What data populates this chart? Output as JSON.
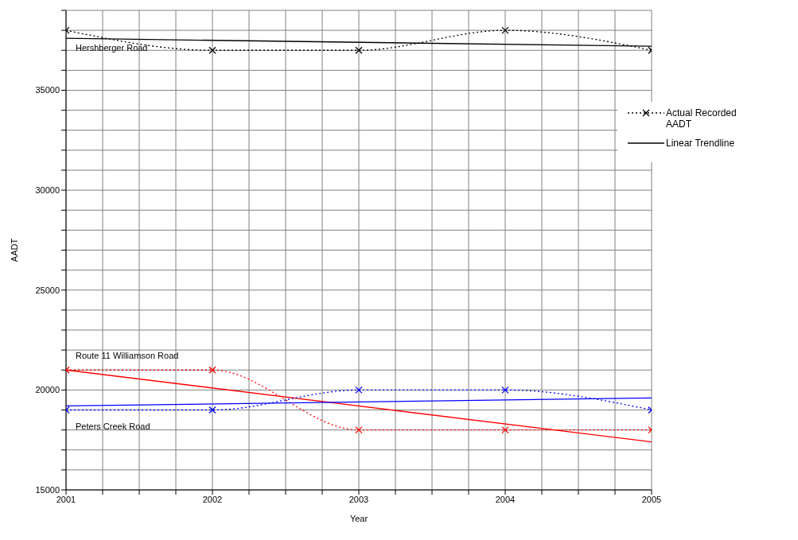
{
  "chart_data": {
    "type": "line",
    "xlabel": "Year",
    "ylabel": "AADT",
    "xlim": [
      2001,
      2005
    ],
    "xticks": [
      2001,
      {
        "value": 2001.25,
        "label": null
      },
      {
        "value": 2001.5,
        "label": null
      },
      {
        "value": 2001.75,
        "label": null
      },
      2002,
      {
        "value": 2002.25,
        "label": null
      },
      {
        "value": 2002.5,
        "label": null
      },
      {
        "value": 2002.75,
        "label": null
      },
      2003,
      {
        "value": 2003.25,
        "label": null
      },
      {
        "value": 2003.5,
        "label": null
      },
      {
        "value": 2003.75,
        "label": null
      },
      2004,
      {
        "value": 2004.25,
        "label": null
      },
      {
        "value": 2004.5,
        "label": null
      },
      {
        "value": 2004.75,
        "label": null
      },
      2005
    ],
    "ylim": [
      15000,
      39000
    ],
    "yticks": [
      15000,
      {
        "value": 16000,
        "label": null
      },
      {
        "value": 17000,
        "label": null
      },
      {
        "value": 18000,
        "label": null
      },
      {
        "value": 19000,
        "label": null
      },
      20000,
      {
        "value": 21000,
        "label": null
      },
      {
        "value": 22000,
        "label": null
      },
      {
        "value": 23000,
        "label": null
      },
      {
        "value": 24000,
        "label": null
      },
      25000,
      {
        "value": 26000,
        "label": null
      },
      {
        "value": 27000,
        "label": null
      },
      {
        "value": 28000,
        "label": null
      },
      {
        "value": 29000,
        "label": null
      },
      30000,
      {
        "value": 31000,
        "label": null
      },
      {
        "value": 32000,
        "label": null
      },
      {
        "value": 33000,
        "label": null
      },
      {
        "value": 34000,
        "label": null
      },
      35000,
      {
        "value": 36000,
        "label": null
      },
      {
        "value": 37000,
        "label": null
      },
      {
        "value": 38000,
        "label": null
      },
      {
        "value": 39000,
        "label": null
      }
    ],
    "grid": true,
    "legend": "top right",
    "series": [
      {
        "name": "Actual Recorded AADT",
        "color": "#000000",
        "x": [
          2001,
          2002,
          2003,
          2004,
          2005
        ],
        "values": [
          38000,
          37000,
          37000,
          38000,
          37000
        ],
        "line_style": "dotted",
        "marker": "cross"
      },
      {
        "name": "Linear Trendline",
        "color": "#000000",
        "x": [
          2001,
          2005
        ],
        "values": [
          37600,
          37200
        ],
        "line_style": "solid",
        "marker": "none"
      },
      {
        "color": "#ff0000",
        "x": [
          2001,
          2002,
          2003,
          2004,
          2005
        ],
        "values": [
          21000,
          21000,
          18000,
          18000,
          18000
        ],
        "line_style": "dotted",
        "marker": "cross"
      },
      {
        "color": "#ff0000",
        "x": [
          2001,
          2005
        ],
        "values": [
          21000,
          17400
        ],
        "line_style": "solid",
        "marker": "none"
      },
      {
        "color": "#0000ff",
        "x": [
          2001,
          2002,
          2003,
          2004,
          2005
        ],
        "values": [
          19000,
          19000,
          20000,
          20000,
          19000
        ],
        "line_style": "dotted",
        "marker": "cross"
      },
      {
        "color": "#0000ff",
        "x": [
          2001,
          2005
        ],
        "values": [
          19200,
          19600
        ],
        "line_style": "solid",
        "marker": "none"
      }
    ],
    "annotations": [
      "Hershberger Road",
      "Route 11 Williamson Road",
      "Peters Creek Road"
    ]
  }
}
